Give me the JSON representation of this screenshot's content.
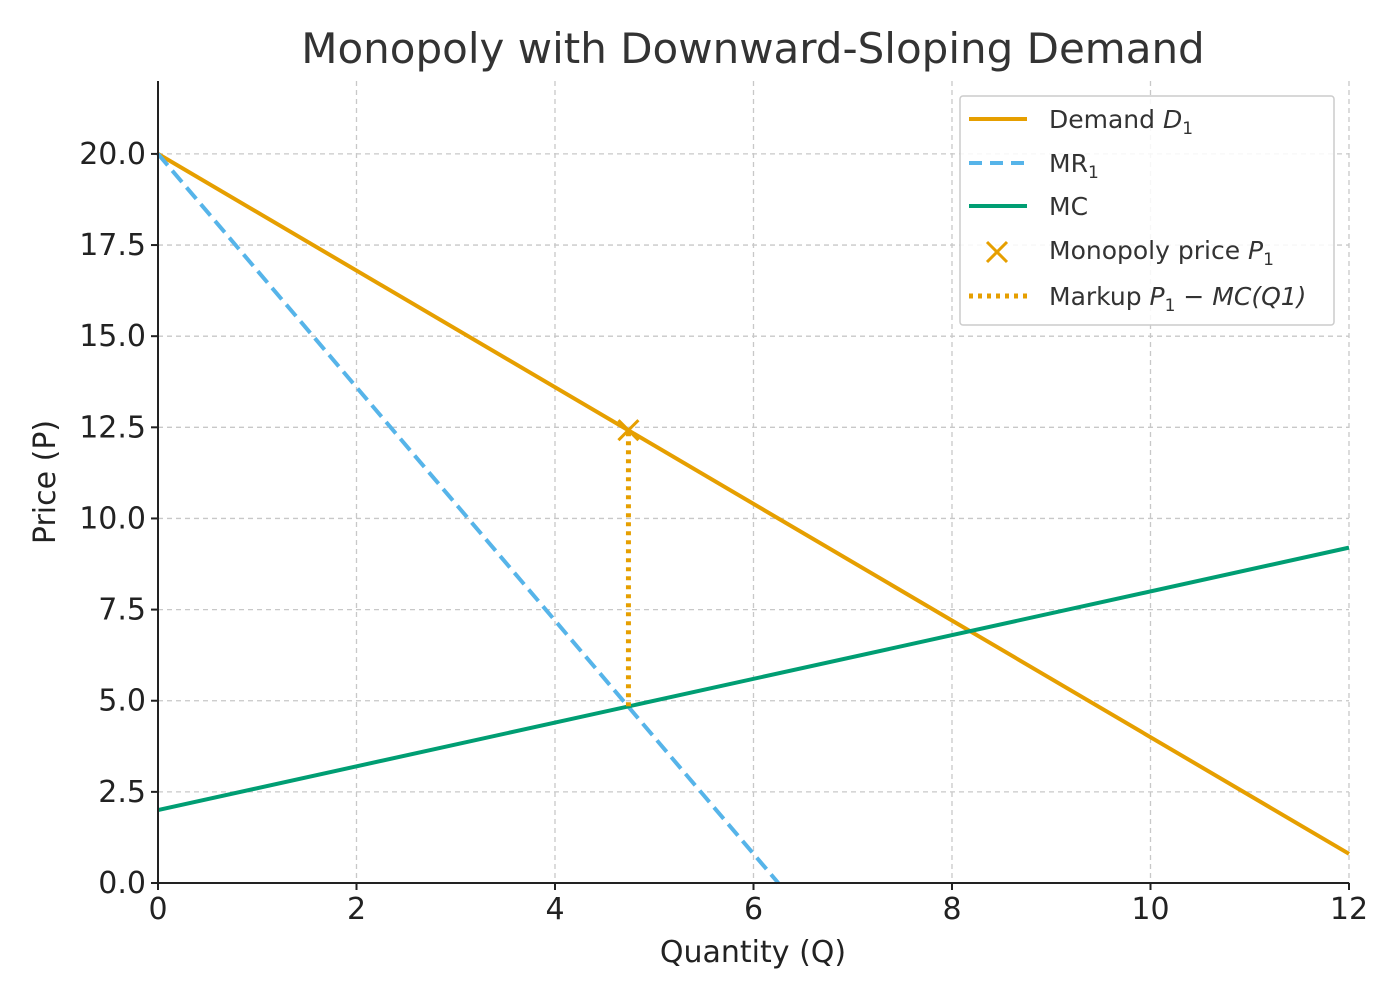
{
  "chart_data": {
    "type": "line",
    "title": "Monopoly with Downward-Sloping Demand",
    "xlabel": "Quantity (Q)",
    "ylabel": "Price (P)",
    "xlim": [
      0,
      12
    ],
    "ylim": [
      0,
      22
    ],
    "grid": true,
    "xticks": [
      0,
      2,
      4,
      6,
      8,
      10,
      12
    ],
    "xtick_labels": [
      "0",
      "2",
      "4",
      "6",
      "8",
      "10",
      "12"
    ],
    "yticks": [
      0,
      2.5,
      5,
      7.5,
      10,
      12.5,
      15,
      17.5,
      20
    ],
    "ytick_labels": [
      "0.0",
      "2.5",
      "5.0",
      "7.5",
      "10.0",
      "12.5",
      "15.0",
      "17.5",
      "20.0"
    ],
    "legend_position": "top-right",
    "series": [
      {
        "name": "Demand D1",
        "style": "solid",
        "color": "#E69F00",
        "x": [
          0,
          12
        ],
        "y": [
          20,
          0.8
        ]
      },
      {
        "name": "MR1",
        "style": "dashed",
        "color": "#56B4E9",
        "x": [
          0,
          6.25
        ],
        "y": [
          20,
          0
        ]
      },
      {
        "name": "MC",
        "style": "solid",
        "color": "#009E73",
        "x": [
          0,
          12
        ],
        "y": [
          2,
          9.2
        ]
      },
      {
        "name": "Monopoly price P1",
        "style": "marker-x",
        "color": "#E69F00",
        "x": [
          4.74
        ],
        "y": [
          12.42
        ]
      },
      {
        "name": "Markup P1 − MC(Q1)",
        "style": "dotted",
        "color": "#E69F00",
        "x": [
          4.74,
          4.74
        ],
        "y": [
          4.85,
          12.42
        ]
      }
    ],
    "legend": [
      {
        "main": "Demand ",
        "italic": "D",
        "sub": "1",
        "tail": ""
      },
      {
        "main": "MR",
        "italic": "",
        "sub": "1",
        "tail": ""
      },
      {
        "main": "MC",
        "italic": "",
        "sub": "",
        "tail": ""
      },
      {
        "main": "Monopoly price ",
        "italic": "P",
        "sub": "1",
        "tail": ""
      },
      {
        "main": "Markup ",
        "italic": "P",
        "sub": "1",
        "tail": " − MC(Q1)"
      }
    ]
  }
}
